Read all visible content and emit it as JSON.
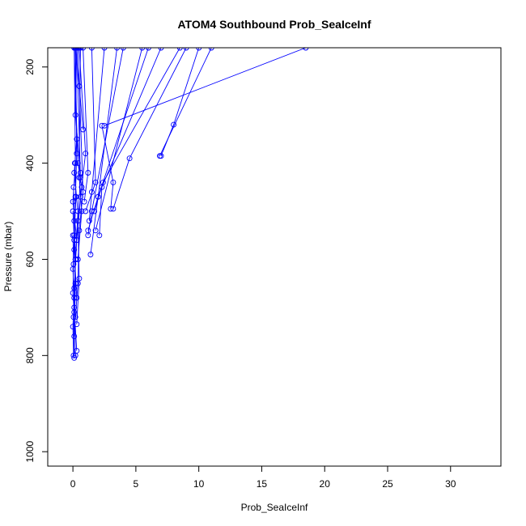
{
  "chart_data": {
    "type": "line",
    "title": "ATOM4 Southbound Prob_SeaIceInf",
    "xlabel": "Prob_SeaIceInf",
    "ylabel": "Pressure (mbar)",
    "xlim": [
      -2,
      34
    ],
    "ylim": [
      1030,
      160
    ],
    "y_reversed": true,
    "x_ticks": [
      0,
      5,
      10,
      15,
      20,
      25,
      30
    ],
    "y_ticks": [
      200,
      400,
      600,
      800,
      1000
    ],
    "grid": false,
    "legend": "none",
    "line_color": "#0000ff",
    "marker": "open-circle",
    "series": [
      {
        "x": [
          0.2,
          0.5,
          0.8
        ],
        "y": [
          160,
          240,
          330
        ]
      },
      {
        "x": [
          0.3,
          0.2,
          0.6
        ],
        "y": [
          160,
          300,
          420
        ]
      },
      {
        "x": [
          0.1,
          0.4,
          0.7,
          0.3
        ],
        "y": [
          160,
          400,
          450,
          560
        ]
      },
      {
        "x": [
          0.5,
          1.0,
          0.6
        ],
        "y": [
          160,
          380,
          470
        ]
      },
      {
        "x": [
          0.8,
          1.2,
          0.9
        ],
        "y": [
          160,
          420,
          480
        ]
      },
      {
        "x": [
          1.5,
          1.8,
          1.0
        ],
        "y": [
          160,
          440,
          500
        ]
      },
      {
        "x": [
          2.5,
          1.5,
          1.3
        ],
        "y": [
          160,
          460,
          520
        ]
      },
      {
        "x": [
          3.5,
          2.0,
          1.2
        ],
        "y": [
          160,
          470,
          540
        ]
      },
      {
        "x": [
          5.5,
          1.8
        ],
        "y": [
          160,
          540
        ]
      },
      {
        "x": [
          7.0,
          2.3,
          2.1
        ],
        "y": [
          160,
          450,
          550
        ]
      },
      {
        "x": [
          9.0,
          4.5,
          3.2
        ],
        "y": [
          160,
          390,
          495
        ]
      },
      {
        "x": [
          11.0,
          6.9
        ],
        "y": [
          160,
          385
        ]
      },
      {
        "x": [
          10.0,
          8.0,
          7.0
        ],
        "y": [
          160,
          320,
          385
        ]
      },
      {
        "x": [
          8.5,
          2.4,
          1.7
        ],
        "y": [
          160,
          440,
          500
        ]
      },
      {
        "x": [
          18.5,
          2.5
        ],
        "y": [
          160,
          322
        ]
      },
      {
        "x": [
          2.3,
          3.2,
          3.0
        ],
        "y": [
          322,
          440,
          495
        ]
      },
      {
        "x": [
          6.0,
          2.0,
          1.4
        ],
        "y": [
          160,
          470,
          590
        ]
      },
      {
        "x": [
          4.0,
          1.5,
          1.2
        ],
        "y": [
          160,
          500,
          550
        ]
      },
      {
        "x": [
          0.2,
          0.3,
          0.1,
          0.4,
          0.2,
          0.1,
          0.3
        ],
        "y": [
          160,
          350,
          420,
          500,
          600,
          700,
          790
        ]
      },
      {
        "x": [
          0.1,
          0.2,
          0.0,
          0.3,
          0.1,
          0.2
        ],
        "y": [
          160,
          400,
          480,
          560,
          660,
          800
        ]
      },
      {
        "x": [
          0.05,
          0.1,
          0.2,
          0.05,
          0.1
        ],
        "y": [
          450,
          520,
          600,
          720,
          805
        ]
      },
      {
        "x": [
          0.3,
          0.6,
          0.4,
          0.5,
          0.3
        ],
        "y": [
          160,
          430,
          520,
          640,
          735
        ]
      },
      {
        "x": [
          0.0,
          0.1,
          0.0,
          0.1,
          0.0,
          0.05
        ],
        "y": [
          500,
          560,
          620,
          680,
          740,
          800
        ]
      },
      {
        "x": [
          0.4,
          0.8,
          0.5,
          0.4,
          0.2
        ],
        "y": [
          160,
          460,
          540,
          650,
          720
        ]
      },
      {
        "x": [
          0.15,
          0.25,
          0.1,
          0.2,
          0.1
        ],
        "y": [
          400,
          470,
          550,
          650,
          760
        ]
      },
      {
        "x": [
          0.6,
          0.5,
          0.7,
          0.4
        ],
        "y": [
          160,
          430,
          500,
          600
        ]
      },
      {
        "x": [
          0.0,
          0.05,
          0.0,
          0.1
        ],
        "y": [
          550,
          610,
          670,
          710
        ]
      },
      {
        "x": [
          0.2,
          0.3,
          0.2,
          0.1,
          0.3
        ],
        "y": [
          160,
          380,
          470,
          580,
          680
        ]
      }
    ]
  }
}
